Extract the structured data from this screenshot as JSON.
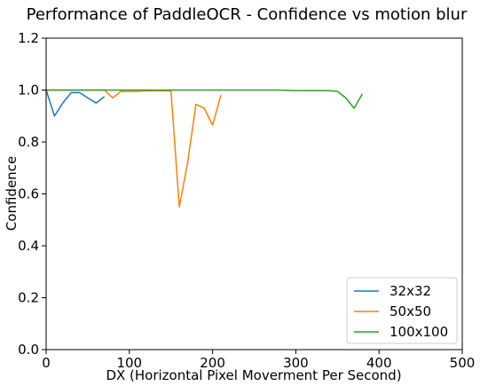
{
  "chart_data": {
    "type": "line",
    "title": "Performance of PaddleOCR - Confidence vs motion blur",
    "xlabel": "DX (Horizontal Pixel Moverment Per Second)",
    "ylabel": "Confidence",
    "xlim": [
      0,
      500
    ],
    "ylim": [
      0.0,
      1.2
    ],
    "xticks": [
      0,
      100,
      200,
      300,
      400,
      500
    ],
    "yticks": [
      0.0,
      0.2,
      0.4,
      0.6,
      0.8,
      1.0,
      1.2
    ],
    "xtick_labels": [
      "0",
      "100",
      "200",
      "300",
      "400",
      "500"
    ],
    "ytick_labels": [
      "0.0",
      "0.2",
      "0.4",
      "0.6",
      "0.8",
      "1.0",
      "1.2"
    ],
    "grid": false,
    "legend_position": "bottom-right",
    "series": [
      {
        "name": "32x32",
        "color": "#1f77b4",
        "x": [
          0,
          10,
          20,
          30,
          40,
          50,
          60,
          70
        ],
        "y": [
          1.0,
          0.9,
          0.95,
          0.99,
          0.99,
          0.97,
          0.95,
          0.975
        ]
      },
      {
        "name": "50x50",
        "color": "#ff7f0e",
        "x": [
          0,
          10,
          20,
          30,
          40,
          50,
          60,
          70,
          80,
          90,
          100,
          110,
          120,
          130,
          140,
          150,
          160,
          170,
          180,
          190,
          200,
          210
        ],
        "y": [
          1.0,
          1.0,
          1.0,
          1.0,
          1.0,
          1.0,
          1.0,
          1.0,
          0.97,
          0.995,
          0.995,
          0.995,
          0.997,
          0.997,
          0.997,
          0.997,
          0.55,
          0.72,
          0.945,
          0.93,
          0.865,
          0.98
        ]
      },
      {
        "name": "100x100",
        "color": "#2ca02c",
        "x": [
          0,
          20,
          40,
          60,
          80,
          100,
          120,
          140,
          160,
          180,
          200,
          220,
          240,
          260,
          280,
          300,
          320,
          340,
          350,
          360,
          370,
          380
        ],
        "y": [
          1.0,
          1.0,
          1.0,
          1.0,
          1.0,
          1.0,
          1.0,
          1.0,
          1.0,
          1.0,
          1.0,
          1.0,
          1.0,
          1.0,
          1.0,
          0.998,
          0.998,
          0.998,
          0.995,
          0.97,
          0.93,
          0.985
        ]
      }
    ]
  }
}
